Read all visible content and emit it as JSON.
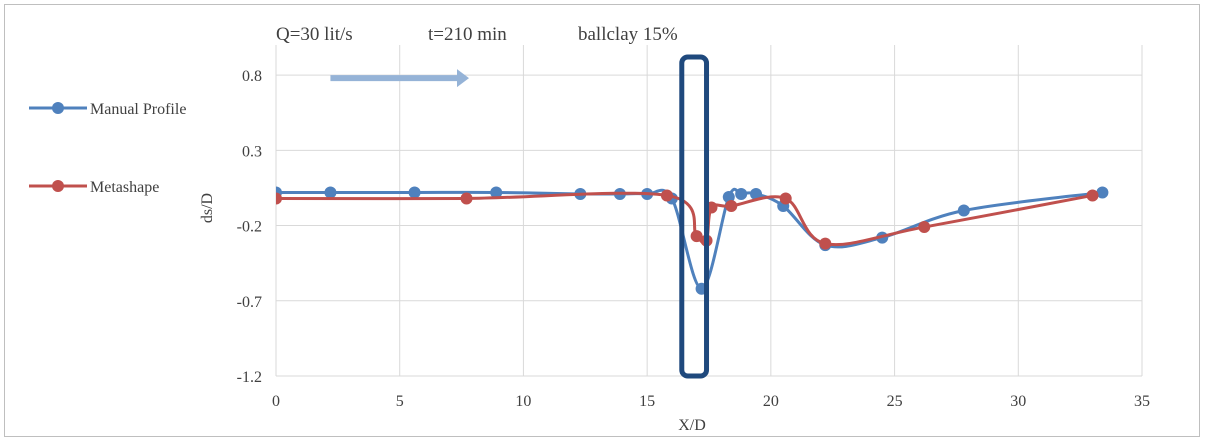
{
  "chart_data": {
    "type": "line",
    "title_parts": [
      "Q=30 lit/s",
      "t=210 min",
      "ballclay 15%"
    ],
    "xlabel": "X/D",
    "ylabel": "ds/D",
    "xlim": [
      0,
      35
    ],
    "ylim": [
      -1.2,
      1.0
    ],
    "x_ticks": [
      0,
      5,
      10,
      15,
      20,
      25,
      30,
      35
    ],
    "y_ticks": [
      0.8,
      0.3,
      -0.2,
      -0.7,
      -1.2
    ],
    "y_tick_labels": [
      "0.8",
      "0.3",
      "-0.2",
      "-0.7",
      "-1.2"
    ],
    "grid": {
      "horizontal": true,
      "vertical": true
    },
    "legend_position": "left",
    "series": [
      {
        "name": "Manual Profile",
        "color": "#4f81bd",
        "x": [
          0,
          2.2,
          5.6,
          8.9,
          12.3,
          13.9,
          15.0,
          16.0,
          17.2,
          18.3,
          18.8,
          19.4,
          20.5,
          22.2,
          24.5,
          27.8,
          33.4
        ],
        "y": [
          0.02,
          0.02,
          0.02,
          0.02,
          0.01,
          0.01,
          0.01,
          -0.02,
          -0.62,
          -0.01,
          0.01,
          0.01,
          -0.07,
          -0.33,
          -0.28,
          -0.1,
          0.02
        ]
      },
      {
        "name": "Metashape",
        "color": "#c0504d",
        "x": [
          0,
          7.7,
          15.8,
          17.0,
          17.4,
          17.6,
          18.4,
          20.6,
          22.2,
          26.2,
          33.0
        ],
        "y": [
          -0.02,
          -0.02,
          0.0,
          -0.27,
          -0.3,
          -0.08,
          -0.07,
          -0.02,
          -0.32,
          -0.21,
          0.0
        ]
      }
    ],
    "annotations": [
      {
        "kind": "arrow",
        "color": "#95b3d7",
        "x_from": 2.2,
        "x_to": 7.8,
        "y": 0.78
      },
      {
        "kind": "pier",
        "color": "#1f497d",
        "x_from": 16.4,
        "x_to": 17.4,
        "y_from": -1.2,
        "y_to": 0.92
      }
    ]
  }
}
